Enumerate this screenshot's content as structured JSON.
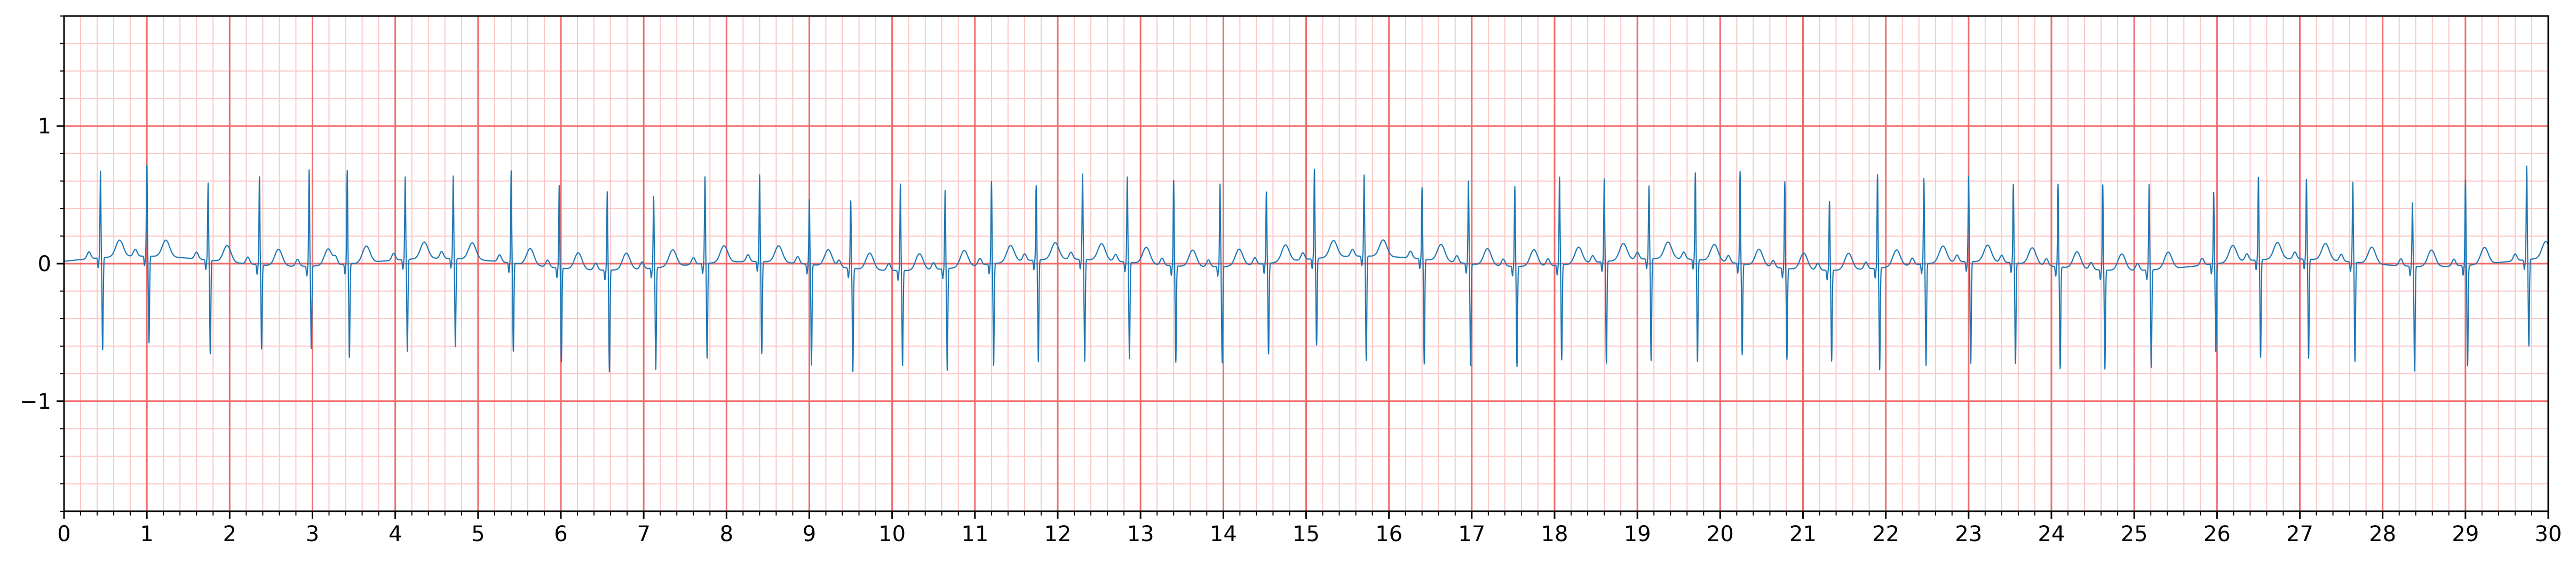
{
  "chart_data": {
    "type": "line",
    "title": "",
    "xlabel": "",
    "ylabel": "",
    "xlim": [
      0,
      30
    ],
    "ylim": [
      -1.8,
      1.8
    ],
    "x_ticks": [
      0,
      1,
      2,
      3,
      4,
      5,
      6,
      7,
      8,
      9,
      10,
      11,
      12,
      13,
      14,
      15,
      16,
      17,
      18,
      19,
      20,
      21,
      22,
      23,
      24,
      25,
      26,
      27,
      28,
      29,
      30
    ],
    "x_tick_labels": [
      "0",
      "1",
      "2",
      "3",
      "4",
      "5",
      "6",
      "7",
      "8",
      "9",
      "10",
      "11",
      "12",
      "13",
      "14",
      "15",
      "16",
      "17",
      "18",
      "19",
      "20",
      "21",
      "22",
      "23",
      "24",
      "25",
      "26",
      "27",
      "28",
      "29",
      "30"
    ],
    "y_ticks": [
      -1,
      0,
      1
    ],
    "y_tick_labels": [
      "−1",
      "0",
      "1"
    ],
    "grid": {
      "major": true,
      "minor": true,
      "major_step_x": 1,
      "minor_step_x": 0.2,
      "major_step_y": 1,
      "minor_step_y": 0.2,
      "major_color": "#f26b6b",
      "minor_color": "#fbc6c6"
    },
    "series": [
      {
        "color": "#1f77b4",
        "beat_times": [
          0.44,
          1.0,
          1.74,
          2.36,
          2.96,
          3.42,
          4.12,
          4.7,
          5.4,
          5.98,
          6.56,
          7.12,
          7.74,
          8.4,
          9.0,
          9.5,
          10.1,
          10.64,
          11.2,
          11.74,
          12.3,
          12.84,
          13.4,
          13.96,
          14.52,
          15.1,
          15.7,
          16.4,
          16.96,
          17.52,
          18.06,
          18.6,
          19.14,
          19.7,
          20.24,
          20.78,
          21.32,
          21.9,
          22.46,
          23.0,
          23.54,
          24.08,
          24.62,
          25.18,
          25.96,
          26.5,
          27.08,
          27.64,
          28.36,
          29.0,
          29.74
        ],
        "r_peak_values": [
          0.63,
          0.66,
          0.56,
          0.64,
          0.7,
          0.68,
          0.6,
          0.6,
          0.67,
          0.6,
          0.57,
          0.52,
          0.63,
          0.63,
          0.47,
          0.49,
          0.63,
          0.57,
          0.6,
          0.54,
          0.62,
          0.62,
          0.62,
          0.6,
          0.52,
          0.65,
          0.59,
          0.52,
          0.6,
          0.58,
          0.64,
          0.6,
          0.53,
          0.63,
          0.67,
          0.63,
          0.5,
          0.68,
          0.62,
          0.62,
          0.57,
          0.6,
          0.62,
          0.62,
          0.52,
          0.6,
          0.58,
          0.58,
          0.46,
          0.62,
          0.68
        ],
        "s_trough_values": [
          -0.67,
          -0.63,
          -0.68,
          -0.61,
          -0.6,
          -0.68,
          -0.67,
          -0.64,
          -0.64,
          -0.68,
          -0.74,
          -0.74,
          -0.69,
          -0.67,
          -0.73,
          -0.75,
          -0.69,
          -0.74,
          -0.74,
          -0.74,
          -0.74,
          -0.7,
          -0.7,
          -0.7,
          -0.66,
          -0.63,
          -0.76,
          -0.76,
          -0.74,
          -0.73,
          -0.69,
          -0.74,
          -0.74,
          -0.74,
          -0.66,
          -0.66,
          -0.66,
          -0.74,
          -0.74,
          -0.74,
          -0.73,
          -0.74,
          -0.72,
          -0.71,
          -0.64,
          -0.71,
          -0.72,
          -0.72,
          -0.76,
          -0.73,
          -0.63
        ],
        "t_wave_amplitude": 0.12,
        "baseline": 0.0
      }
    ]
  }
}
